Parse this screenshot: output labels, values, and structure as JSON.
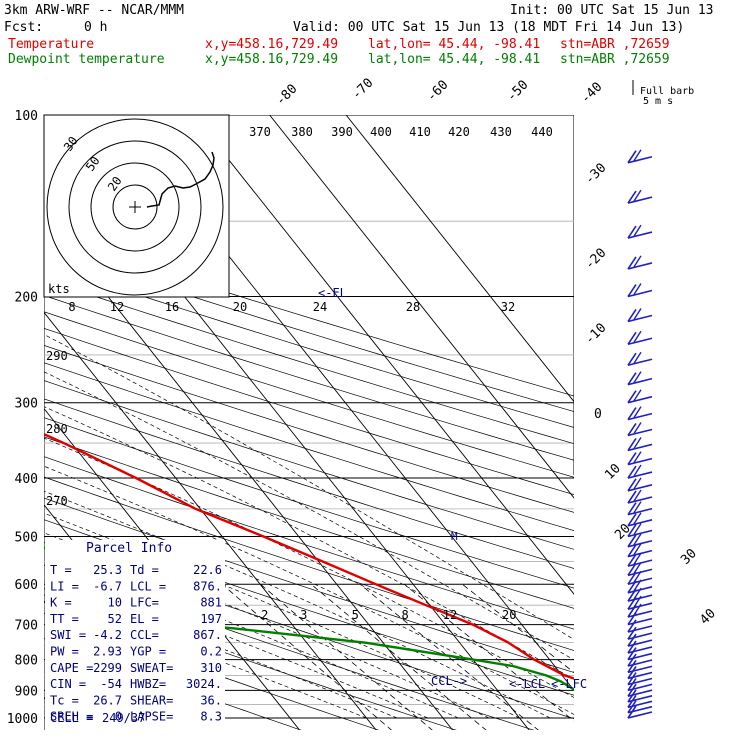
{
  "header": {
    "model": "3km ARW-WRF -- NCAR/MMM",
    "init": "Init: 00 UTC Sat 15 Jun 13",
    "fcst_label": "Fcst:",
    "fcst_value": "0 h",
    "valid": "Valid: 00 UTC Sat 15 Jun 13 (18 MDT Fri 14 Jun 13)",
    "temp_label": "Temperature",
    "dew_label": "Dewpoint temperature",
    "xy": "x,y=458.16,729.49",
    "latlon": "lat,lon= 45.44, -98.41",
    "stn": "stn=ABR ,72659"
  },
  "colors": {
    "temperature": "#e00000",
    "dewpoint": "#008000",
    "text_blue": "#000080",
    "barb_blue": "#2020c0"
  },
  "chart_data": {
    "type": "skew-t",
    "pressure_levels": [
      100,
      200,
      300,
      400,
      500,
      600,
      700,
      800,
      900,
      1000
    ],
    "temp_tick_labels": [
      -80,
      -70,
      -60,
      -50,
      -40,
      -30,
      -20,
      -10,
      0,
      10,
      20,
      30,
      40
    ],
    "theta_labels_top": [
      370,
      380,
      390,
      400,
      410,
      420,
      430,
      440
    ],
    "theta_labels_left": [
      290,
      280,
      270
    ],
    "mixing_ratio_labels": [
      "2",
      "3",
      "5",
      "8",
      "12",
      "20"
    ],
    "hodograph": {
      "rings": [
        "10",
        "20",
        "30",
        "40",
        "50"
      ],
      "kts_label": "kts",
      "speed_labels": [
        "8",
        "12",
        "16",
        "20",
        "24",
        "28",
        "32"
      ]
    },
    "markers": {
      "el": "<-EL",
      "lcl": "<-LCL",
      "lfc": "<-LFC",
      "ccl": "CCL->",
      "m": "M"
    },
    "temperature_profile": [
      [
        950,
        30.6
      ],
      [
        925,
        28.1
      ],
      [
        900,
        24.8
      ],
      [
        870,
        22.1
      ],
      [
        850,
        20.3
      ],
      [
        800,
        18.0
      ],
      [
        750,
        16.4
      ],
      [
        700,
        13.6
      ],
      [
        650,
        9.5
      ],
      [
        600,
        5.1
      ],
      [
        550,
        0.5
      ],
      [
        500,
        -4.6
      ],
      [
        450,
        -10.6
      ],
      [
        400,
        -15.2
      ],
      [
        350,
        -21.0
      ],
      [
        300,
        -28.6
      ],
      [
        250,
        -38.7
      ],
      [
        225,
        -43.6
      ],
      [
        200,
        -48.7
      ],
      [
        175,
        -52.2
      ],
      [
        150,
        -55.1
      ],
      [
        125,
        -57.6
      ],
      [
        100,
        -59.7
      ]
    ],
    "dewpoint_profile": [
      [
        950,
        23.9
      ],
      [
        925,
        21.8
      ],
      [
        900,
        20.2
      ],
      [
        870,
        19.2
      ],
      [
        850,
        17.9
      ],
      [
        820,
        14.5
      ],
      [
        800,
        10.0
      ],
      [
        750,
        -2.3
      ],
      [
        710,
        -18.1
      ],
      [
        700,
        -23.0
      ],
      [
        650,
        -25.5
      ],
      [
        600,
        -29.5
      ],
      [
        550,
        -32.1
      ],
      [
        500,
        -36.1
      ],
      [
        450,
        -43.9
      ],
      [
        400,
        -51.3
      ],
      [
        350,
        -55.7
      ],
      [
        300,
        -61.0
      ],
      [
        260,
        -63.4
      ],
      [
        230,
        -69.3
      ],
      [
        200,
        -76.7
      ],
      [
        175,
        -78.8
      ],
      [
        150,
        -80.5
      ],
      [
        125,
        -80.5
      ],
      [
        110,
        -79.6
      ],
      [
        100,
        -79.1
      ]
    ],
    "full_barb_label": "Full barb",
    "full_barb_units": "5 m s"
  },
  "parcel_info": {
    "title": "Parcel Info",
    "rows": [
      [
        "T  =",
        "25.3",
        "Td =",
        "22.6"
      ],
      [
        "LI =",
        "-6.7",
        "LCL =",
        "876."
      ],
      [
        "K  =",
        "10",
        "LFC=",
        "881"
      ],
      [
        "TT =",
        "52",
        "EL =",
        "197"
      ],
      [
        "SWI =",
        "-4.2",
        "CCL=",
        "867."
      ],
      [
        "PW =",
        "2.93",
        "YGP =",
        "0.2"
      ],
      [
        "CAPE =",
        "2299",
        "SWEAT=",
        "310"
      ],
      [
        "CIN =",
        "-54",
        "HWBZ=",
        "3024."
      ],
      [
        "Tc =",
        "26.7",
        "SHEAR=",
        "36."
      ],
      [
        "SREH =",
        "0",
        "LAPSE=",
        "8.3"
      ]
    ],
    "cell_label": "CELL =",
    "cell_value": "249/37"
  }
}
